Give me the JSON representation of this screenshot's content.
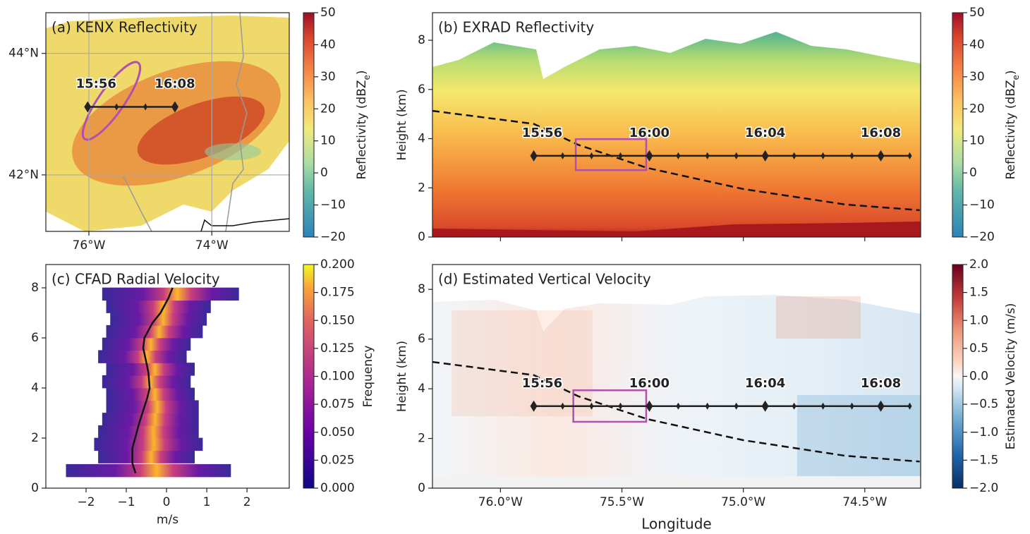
{
  "chart_data": [
    {
      "type": "map",
      "title": "(a) KENX Reflectivity",
      "xlim": [
        -76.7,
        -72.74
      ],
      "ylim": [
        41.07,
        44.67
      ],
      "xticks": [
        {
          "value": -76,
          "label": "76°W"
        },
        {
          "value": -74,
          "label": "74°W"
        }
      ],
      "yticks": [
        {
          "value": 42,
          "label": "42°N"
        },
        {
          "value": 44,
          "label": "44°N"
        }
      ],
      "grid": true,
      "track": {
        "x": [
          -76.02,
          -75.55,
          -75.08,
          -74.6
        ],
        "y": [
          43.12,
          43.12,
          43.12,
          43.12
        ],
        "labels": [
          "15:56",
          null,
          null,
          "16:08"
        ],
        "color": "#222222"
      },
      "colorbar": {
        "label": "Reflectivity (dBZ",
        "label_sub": "e",
        "label_end": ")",
        "colormap": "Spectral_r",
        "lim": [
          -20,
          50
        ],
        "ticks": [
          {
            "value": -20,
            "label": "−20"
          },
          {
            "value": -10,
            "label": "−10"
          },
          0,
          10,
          20,
          30,
          40,
          50
        ]
      }
    },
    {
      "type": "heatmap",
      "title": "(b) EXRAD Reflectivity",
      "xlim": [
        -76.28,
        -74.27
      ],
      "ylim": [
        0,
        9.12
      ],
      "yticks": [
        0,
        2,
        4,
        6,
        8
      ],
      "ylabel": "Height (km)",
      "track": {
        "x": [
          -75.863,
          -75.744,
          -75.625,
          -75.506,
          -75.387,
          -75.268,
          -75.148,
          -75.029,
          -74.91,
          -74.791,
          -74.672,
          -74.553,
          -74.434,
          -74.315
        ],
        "y": [
          3.3,
          3.3,
          3.3,
          3.3,
          3.3,
          3.3,
          3.3,
          3.3,
          3.3,
          3.3,
          3.3,
          3.3,
          3.3,
          3.3
        ],
        "labels": [
          "15:56",
          null,
          null,
          null,
          "16:00",
          null,
          null,
          null,
          "16:04",
          null,
          null,
          null,
          "16:08",
          null
        ],
        "color": "#222222"
      },
      "dashed": {
        "x": [
          -76.28,
          -75.863,
          -75.68,
          -75.396,
          -75.0,
          -74.579,
          -74.274
        ],
        "y": [
          5.13,
          4.6,
          3.75,
          2.81,
          1.95,
          1.32,
          1.09
        ]
      },
      "box": {
        "x": [
          -75.69,
          -75.4
        ],
        "y": [
          2.72,
          3.98
        ],
        "color": "#b050b0"
      },
      "colorbar": {
        "label": "Reflectivity (dBZ",
        "label_sub": "e",
        "label_end": ")",
        "colormap": "Spectral_r",
        "lim": [
          -20,
          50
        ],
        "ticks": [
          {
            "value": -20,
            "label": "−20"
          },
          {
            "value": -10,
            "label": "−10"
          },
          0,
          10,
          20,
          30,
          40,
          50
        ]
      }
    },
    {
      "type": "heatmap",
      "title": "(c) CFAD Radial Velocity",
      "xlim": [
        -3,
        3.05
      ],
      "ylim": [
        0,
        8.93
      ],
      "xticks": [
        {
          "value": -2,
          "label": "−2"
        },
        {
          "value": -1,
          "label": "−1"
        },
        0,
        1,
        2
      ],
      "yticks": [
        0,
        2,
        4,
        6,
        8
      ],
      "xlabel": "m/s",
      "cfad": {
        "height": [
          0.7,
          1.25,
          1.75,
          2.25,
          2.75,
          3.25,
          3.75,
          4.25,
          4.75,
          5.25,
          5.75,
          6.25,
          6.75,
          7.25,
          7.75
        ],
        "left": [
          -2.5,
          -1.7,
          -1.8,
          -1.7,
          -1.6,
          -1.5,
          -1.5,
          -1.6,
          -1.5,
          -1.7,
          -1.6,
          -1.5,
          -1.4,
          -1.5,
          -1.6
        ],
        "right": [
          1.6,
          0.7,
          0.9,
          0.8,
          0.8,
          0.8,
          0.7,
          0.6,
          0.7,
          0.5,
          0.6,
          0.9,
          1.0,
          1.1,
          1.8
        ]
      },
      "mean": {
        "height": [
          0.6,
          1.0,
          1.6,
          2.0,
          2.6,
          3.0,
          3.6,
          4.0,
          4.6,
          5.0,
          5.6,
          6.0,
          6.6,
          7.0,
          7.6,
          8.0
        ],
        "velocity": [
          -0.77,
          -0.85,
          -0.85,
          -0.78,
          -0.68,
          -0.6,
          -0.48,
          -0.42,
          -0.45,
          -0.5,
          -0.58,
          -0.55,
          -0.35,
          -0.15,
          0.05,
          0.15
        ]
      },
      "colorbar": {
        "label": "Frequency",
        "colormap": "plasma",
        "lim": [
          0,
          0.2
        ],
        "ticks": [
          {
            "value": 0,
            "label": "0.000"
          },
          {
            "value": 0.025,
            "label": "0.025"
          },
          {
            "value": 0.05,
            "label": "0.050"
          },
          {
            "value": 0.075,
            "label": "0.075"
          },
          {
            "value": 0.1,
            "label": "0.100"
          },
          {
            "value": 0.125,
            "label": "0.125"
          },
          {
            "value": 0.15,
            "label": "0.150"
          },
          {
            "value": 0.175,
            "label": "0.175"
          },
          {
            "value": 0.2,
            "label": "0.200"
          }
        ]
      }
    },
    {
      "type": "heatmap",
      "title": "(d) Estimated Vertical Velocity",
      "xlim": [
        -76.28,
        -74.27
      ],
      "ylim": [
        0,
        9
      ],
      "xticks": [
        {
          "value": -76,
          "label": "76.0°W"
        },
        {
          "value": -75.5,
          "label": "75.5°W"
        },
        {
          "value": -75,
          "label": "75.0°W"
        },
        {
          "value": -74.5,
          "label": "74.5°W"
        }
      ],
      "yticks": [
        0,
        2,
        4,
        6,
        8
      ],
      "xlabel": "Longitude",
      "ylabel": "Height (km)",
      "track": {
        "x": [
          -75.863,
          -75.744,
          -75.625,
          -75.506,
          -75.387,
          -75.268,
          -75.148,
          -75.029,
          -74.91,
          -74.791,
          -74.672,
          -74.553,
          -74.434,
          -74.315
        ],
        "y": [
          3.3,
          3.3,
          3.3,
          3.3,
          3.3,
          3.3,
          3.3,
          3.3,
          3.3,
          3.3,
          3.3,
          3.3,
          3.3,
          3.3
        ],
        "labels": [
          "15:56",
          null,
          null,
          null,
          "16:00",
          null,
          null,
          null,
          "16:04",
          null,
          null,
          null,
          "16:08",
          null
        ],
        "color": "#222222"
      },
      "dashed": {
        "x": [
          -76.28,
          -75.863,
          -75.68,
          -75.396,
          -75.0,
          -74.579,
          -74.274
        ],
        "y": [
          5.08,
          4.55,
          3.7,
          2.78,
          1.93,
          1.3,
          1.07
        ]
      },
      "box": {
        "x": [
          -75.7,
          -75.4
        ],
        "y": [
          2.67,
          3.94
        ],
        "color": "#b050b0"
      },
      "colorbar": {
        "label": "Estimated Velocity (m/s)",
        "colormap": "RdBu_r",
        "lim": [
          -2,
          2
        ],
        "ticks": [
          {
            "value": -2,
            "label": "−2.0"
          },
          {
            "value": -1.5,
            "label": "−1.5"
          },
          {
            "value": -1,
            "label": "−1.0"
          },
          {
            "value": -0.5,
            "label": "−0.5"
          },
          {
            "value": 0,
            "label": "0.0"
          },
          0.5,
          {
            "value": 1,
            "label": "1.0"
          },
          1.5,
          {
            "value": 2,
            "label": "2.0"
          }
        ]
      }
    }
  ]
}
